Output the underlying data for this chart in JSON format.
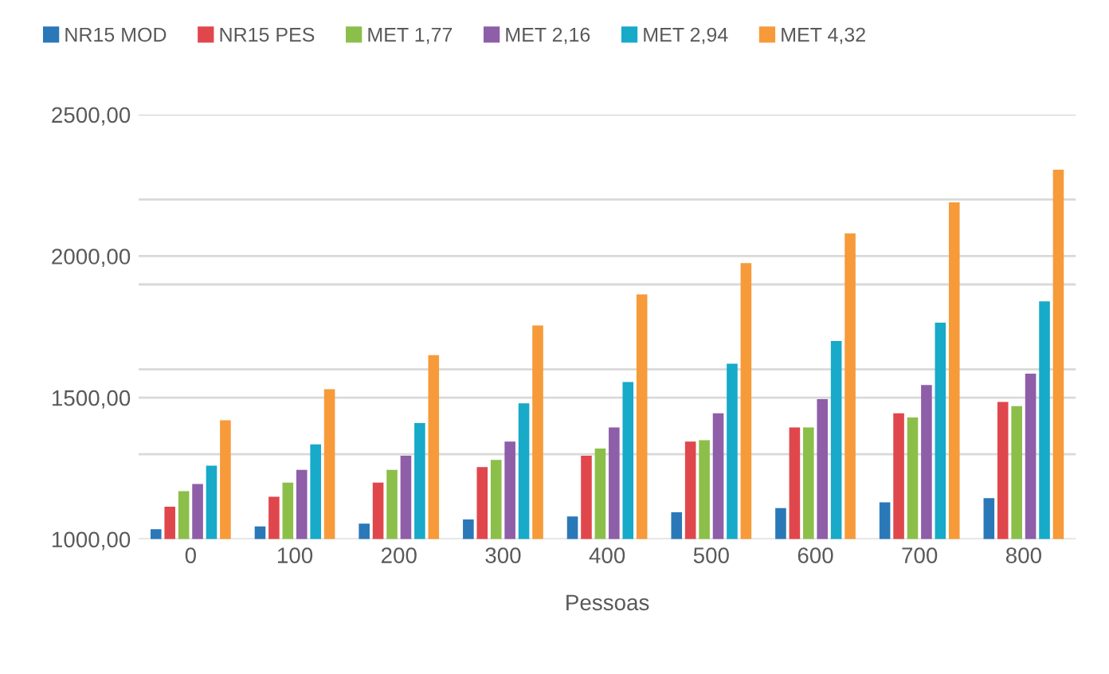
{
  "chart_data": {
    "type": "bar",
    "xlabel": "Pessoas",
    "categories": [
      "0",
      "100",
      "200",
      "300",
      "400",
      "500",
      "600",
      "700",
      "800"
    ],
    "series": [
      {
        "name": "NR15 MOD",
        "color": "#2a78b8",
        "values": [
          1035,
          1045,
          1055,
          1070,
          1080,
          1095,
          1110,
          1130,
          1145
        ]
      },
      {
        "name": "NR15 PES",
        "color": "#e0474c",
        "values": [
          1115,
          1150,
          1200,
          1255,
          1295,
          1345,
          1395,
          1445,
          1485
        ]
      },
      {
        "name": "MET 1,77",
        "color": "#8cbf4a",
        "values": [
          1170,
          1200,
          1245,
          1280,
          1320,
          1350,
          1395,
          1430,
          1470
        ]
      },
      {
        "name": "MET 2,16",
        "color": "#8e5ea8",
        "values": [
          1195,
          1245,
          1295,
          1345,
          1395,
          1445,
          1495,
          1545,
          1585
        ]
      },
      {
        "name": "MET 2,94",
        "color": "#17aac9",
        "values": [
          1260,
          1335,
          1410,
          1480,
          1555,
          1620,
          1700,
          1765,
          1840
        ]
      },
      {
        "name": "MET 4,32",
        "color": "#f79a3a",
        "values": [
          1420,
          1530,
          1650,
          1755,
          1865,
          1975,
          2080,
          2190,
          2305
        ]
      }
    ],
    "ylim": [
      1000,
      2500
    ],
    "yticks": [
      {
        "value": 1000,
        "label": "1000,00"
      },
      {
        "value": 1300,
        "label": null
      },
      {
        "value": 1500,
        "label": "1500,00"
      },
      {
        "value": 1600,
        "label": null
      },
      {
        "value": 1900,
        "label": null
      },
      {
        "value": 2000,
        "label": "2000,00"
      },
      {
        "value": 2200,
        "label": null
      },
      {
        "value": 2500,
        "label": "2500,00"
      }
    ],
    "grid": "y",
    "legend": "top left"
  }
}
